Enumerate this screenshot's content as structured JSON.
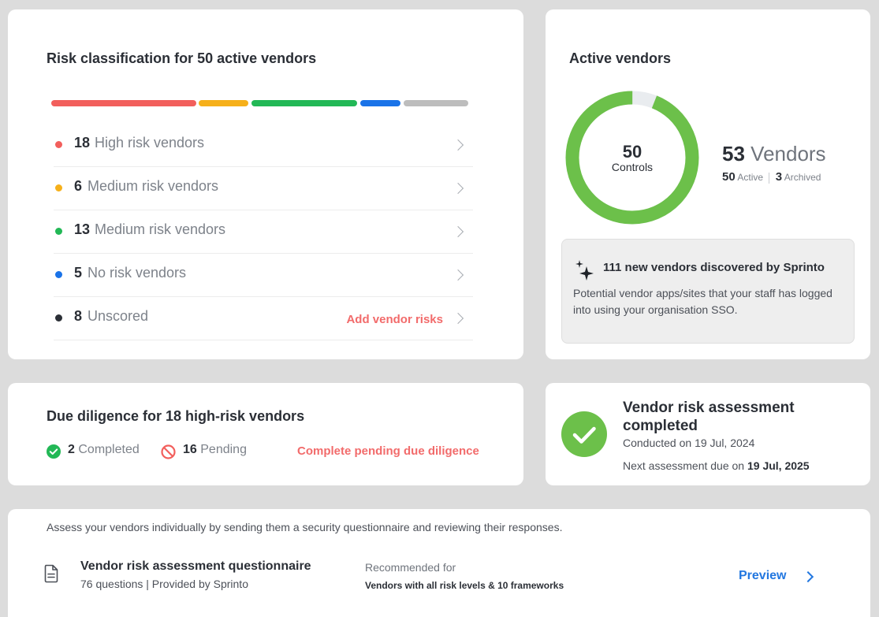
{
  "risk_card": {
    "title": "Risk classification for 50 active vendors",
    "rows": [
      {
        "count": "18",
        "label": "High risk vendors",
        "color": "#f25f5c"
      },
      {
        "count": "6",
        "label": "Medium risk vendors",
        "color": "#f6b01a"
      },
      {
        "count": "13",
        "label": "Medium risk vendors",
        "color": "#22b856"
      },
      {
        "count": "5",
        "label": "No risk vendors",
        "color": "#1a73e8"
      },
      {
        "count": "8",
        "label": "Unscored",
        "color": "#2b2f36"
      }
    ],
    "add_link": "Add vendor risks",
    "bar_colors": [
      "#f25f5c",
      "#f6b01a",
      "#22b856",
      "#1a73e8",
      "#bdbdbd"
    ]
  },
  "active_card": {
    "title": "Active vendors",
    "donut_value": "50",
    "donut_label": "Controls",
    "donut_fraction": 0.94,
    "total_count": "53",
    "total_label": "Vendors",
    "active_count": "50",
    "active_label": "Active",
    "archived_count": "3",
    "archived_label": "Archived",
    "discover_title": "111 new vendors discovered by Sprinto",
    "discover_desc": "Potential vendor apps/sites that your staff has logged into using your organisation SSO.",
    "accent": "#6cc04a"
  },
  "due_card": {
    "title": "Due diligence for 18 high-risk vendors",
    "completed_count": "2",
    "completed_label": "Completed",
    "pending_count": "16",
    "pending_label": "Pending",
    "link": "Complete pending due diligence"
  },
  "assess_card": {
    "title": "Vendor risk assessment completed",
    "conducted": "Conducted on 19 Jul, 2024",
    "next_prefix": "Next assessment due on",
    "next_date": "19 Jul, 2025"
  },
  "questionnaire": {
    "intro": "Assess your vendors individually by sending them a security questionnaire and reviewing their responses.",
    "name": "Vendor risk assessment questionnaire",
    "meta": "76 questions | Provided by Sprinto",
    "rec_label": "Recommended for",
    "rec_value": "Vendors with all risk levels & 10 frameworks",
    "preview": "Preview"
  }
}
